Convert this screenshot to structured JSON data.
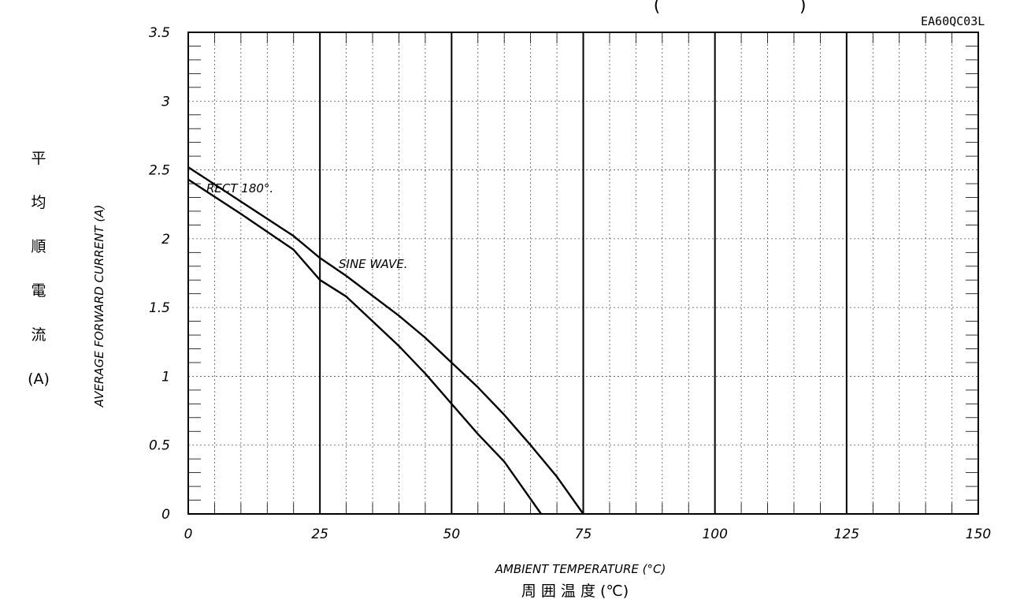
{
  "chart_data": {
    "type": "line",
    "code_label": "EA60QC03L",
    "top_fragment_left": "(",
    "top_fragment_right": ")",
    "xlabel": "AMBIENT TEMPERATURE (°C)",
    "xlabel_jp": "周 囲 温 度  (℃)",
    "ylabel": "AVERAGE FORWARD CURRENT (A)",
    "ylabel_jp": [
      "平",
      "均",
      "順",
      "電",
      "流",
      "(A)"
    ],
    "xlim": [
      0,
      150
    ],
    "ylim": [
      0,
      3.5
    ],
    "x_ticks": [
      0,
      25,
      50,
      75,
      100,
      125,
      150
    ],
    "x_tick_labels": [
      "0",
      "25",
      "50",
      "75",
      "100",
      "125",
      "150"
    ],
    "y_ticks": [
      0,
      0.5,
      1,
      1.5,
      2,
      2.5,
      3,
      3.5
    ],
    "y_tick_labels": [
      "0",
      "0.5",
      "1",
      "1.5",
      "2",
      "2.5",
      "3",
      "3.5"
    ],
    "grid": true,
    "series": [
      {
        "name": "RECT 180°.",
        "x": [
          0,
          10,
          20,
          25,
          30,
          40,
          45,
          50,
          55,
          60,
          67
        ],
        "y": [
          2.43,
          2.18,
          1.92,
          1.7,
          1.58,
          1.22,
          1.02,
          0.8,
          0.58,
          0.38,
          0
        ]
      },
      {
        "name": "SINE WAVE.",
        "x": [
          0,
          10,
          20,
          25,
          30,
          40,
          45,
          50,
          55,
          60,
          65,
          70,
          75
        ],
        "y": [
          2.52,
          2.27,
          2.02,
          1.86,
          1.73,
          1.44,
          1.28,
          1.1,
          0.92,
          0.72,
          0.5,
          0.27,
          0
        ]
      }
    ]
  }
}
